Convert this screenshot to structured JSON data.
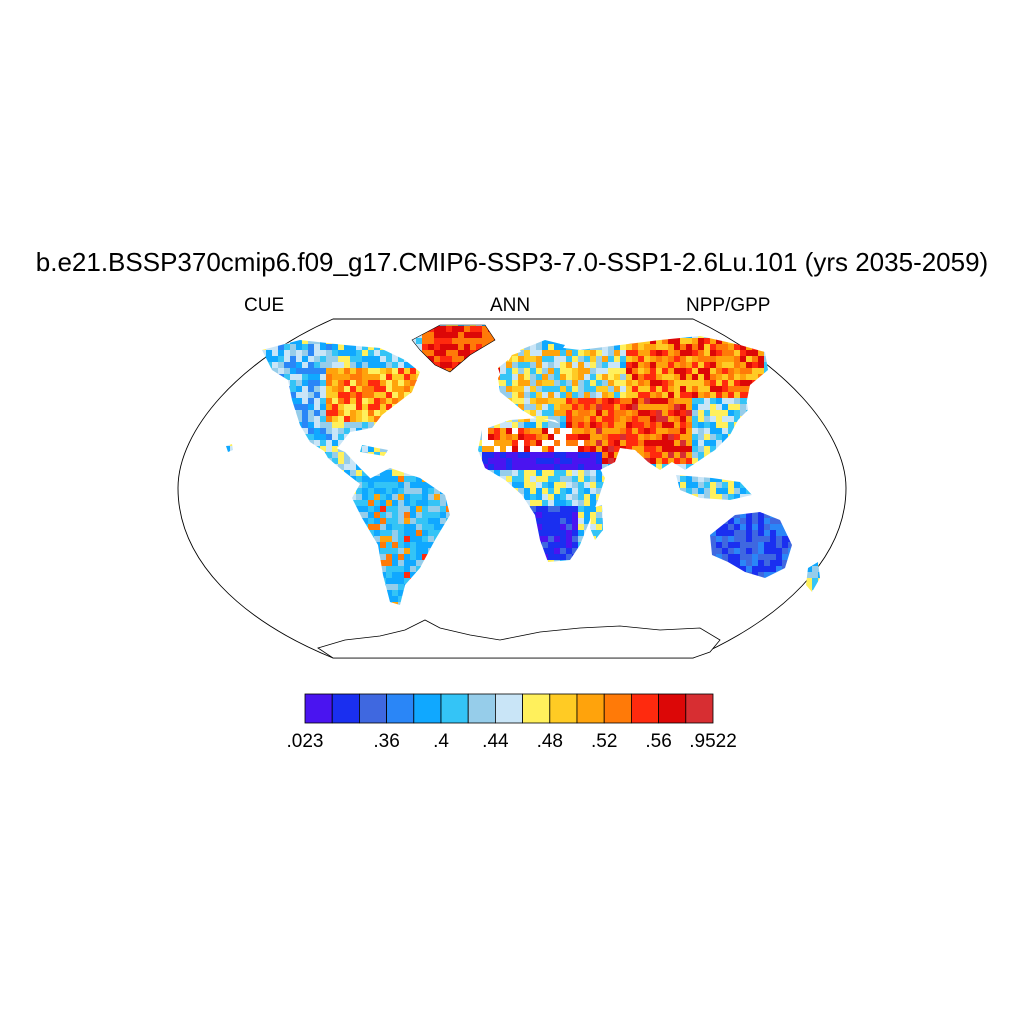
{
  "title": "b.e21.BSSP370cmip6.f09_g17.CMIP6-SSP3-7.0-SSP1-2.6Lu.101 (yrs 2035-2059)",
  "left_string": "CUE",
  "center_string": "ANN",
  "right_string": "NPP/GPP",
  "colorbar": {
    "colors": [
      "#4a14f0",
      "#1a2ff0",
      "#3f68e0",
      "#2a86f7",
      "#10a8ff",
      "#34c4f6",
      "#96cdea",
      "#c9e5f7",
      "#fff05c",
      "#ffcb24",
      "#ffa30c",
      "#ff7a08",
      "#ff2a0e",
      "#dc0707",
      "#d72e32"
    ],
    "labels": [
      ".023",
      ".36",
      ".4",
      ".44",
      ".48",
      ".52",
      ".56",
      ".9522"
    ]
  }
}
